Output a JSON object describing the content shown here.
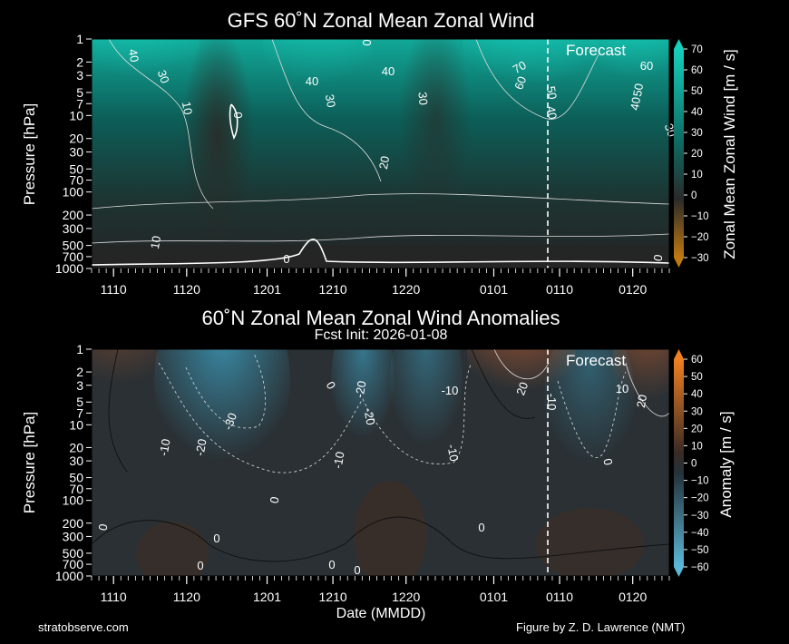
{
  "header": {
    "title_top": "GFS 60˚N Zonal Mean Zonal Wind",
    "title_bottom": "60˚N Zonal Mean Zonal Wind Anomalies",
    "subtitle_bottom": "Fcst Init: 2026-01-08"
  },
  "footer": {
    "left": "stratobserve.com",
    "right": "Figure by Z. D. Lawrence (NMT)",
    "xlabel": "Date (MMDD)"
  },
  "colors": {
    "background": "#000000",
    "wind_pos": "#14c8b4",
    "wind_neg": "#d08010",
    "anom_pos": "#e07030",
    "anom_neg": "#3ea0c0"
  },
  "chart_data": [
    {
      "type": "heatmap",
      "title": "GFS 60˚N Zonal Mean Zonal Wind",
      "ylabel": "Pressure [hPa]",
      "colorbar_label": "Zonal Mean Zonal Wind [m / s]",
      "annotation": "Forecast",
      "y_scale": "log",
      "y_ticks": [
        1,
        2,
        3,
        5,
        7,
        10,
        20,
        30,
        50,
        70,
        100,
        200,
        300,
        500,
        700,
        1000
      ],
      "x_ticks": [
        "1110",
        "1120",
        "1201",
        "1210",
        "1220",
        "0101",
        "0110",
        "0120"
      ],
      "colorbar_ticks": [
        70,
        60,
        50,
        40,
        30,
        20,
        10,
        0,
        -10,
        -20,
        -30
      ],
      "contour_labels": [
        "40",
        "30",
        "10",
        "0",
        "0",
        "40",
        "30",
        "40",
        "30",
        "20",
        "60",
        "70",
        "50",
        "40",
        "60",
        "50",
        "40",
        "30",
        "10",
        "0",
        "0"
      ]
    },
    {
      "type": "heatmap",
      "title": "60˚N Zonal Mean Zonal Wind Anomalies",
      "subtitle": "Fcst Init: 2026-01-08",
      "ylabel": "Pressure [hPa]",
      "xlabel": "Date (MMDD)",
      "colorbar_label": "Anomaly [m / s]",
      "annotation": "Forecast",
      "y_scale": "log",
      "y_ticks": [
        1,
        2,
        3,
        5,
        7,
        10,
        20,
        30,
        50,
        70,
        100,
        200,
        300,
        500,
        700,
        1000
      ],
      "x_ticks": [
        "1110",
        "1120",
        "1201",
        "1210",
        "1220",
        "0101",
        "0110",
        "0120"
      ],
      "colorbar_ticks": [
        60,
        50,
        40,
        30,
        20,
        10,
        0,
        -10,
        -20,
        -30,
        -40,
        -50,
        -60
      ],
      "contour_labels": [
        "-10",
        "-20",
        "-30",
        "0",
        "-20",
        "-10",
        "-20",
        "-10",
        "20",
        "-10",
        "0",
        "-10",
        "20",
        "10",
        "0",
        "0",
        "0",
        "0",
        "0",
        "0",
        "0"
      ]
    }
  ]
}
